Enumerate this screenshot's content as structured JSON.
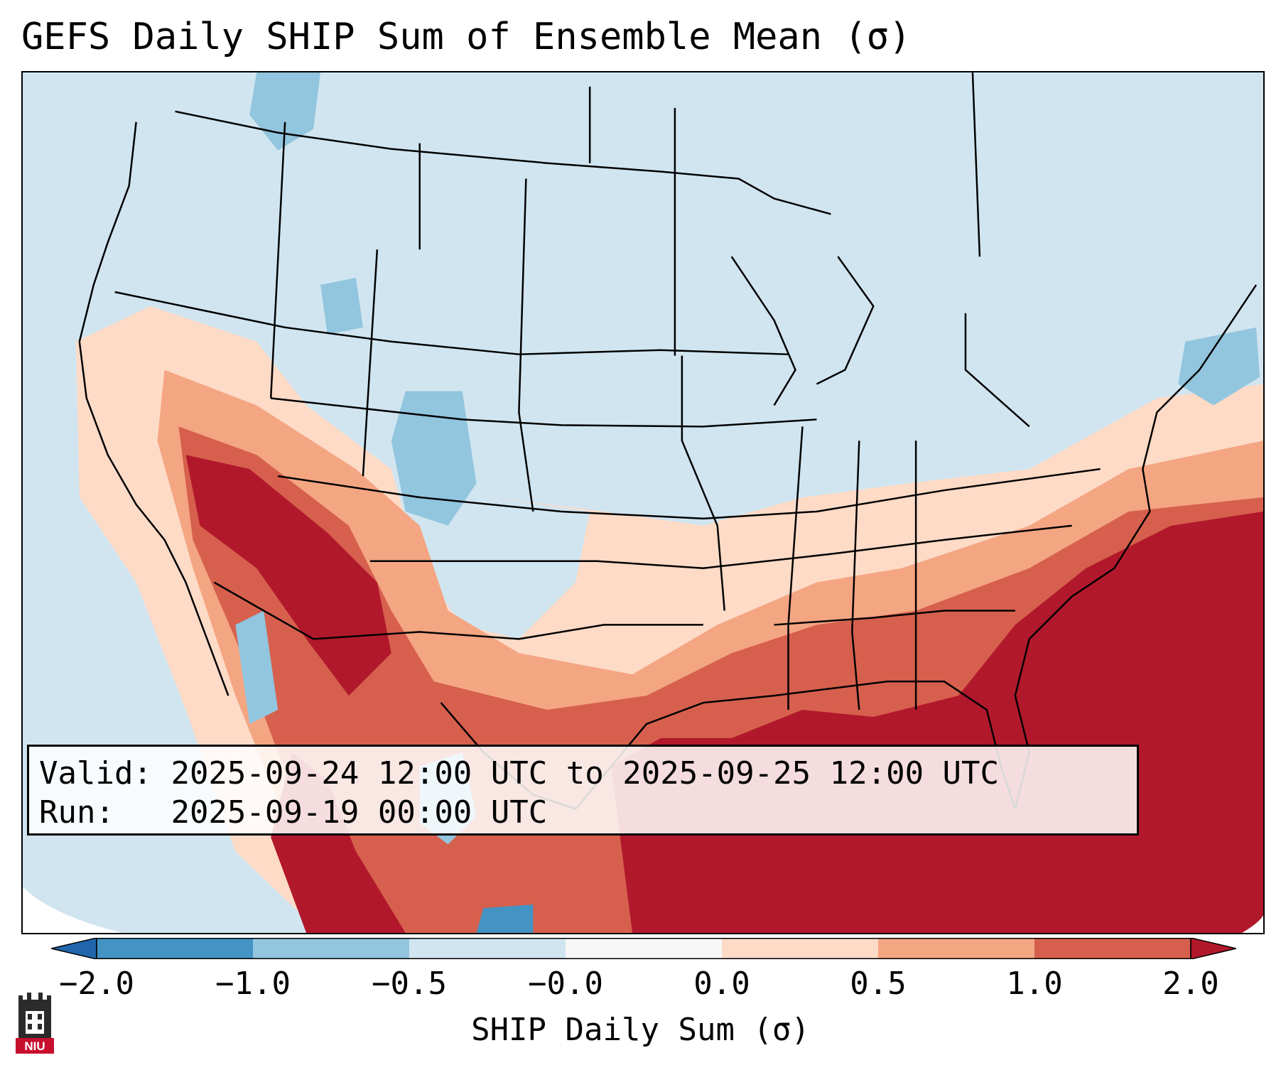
{
  "title": "GEFS Daily SHIP Sum of Ensemble Mean (σ)",
  "info": {
    "valid_label": "Valid:",
    "valid_value": "2025-09-24 12:00 UTC to 2025-09-25 12:00 UTC",
    "run_label": "Run:",
    "run_value": "2025-09-19 00:00 UTC"
  },
  "colorbar": {
    "label": "SHIP Daily Sum (σ)",
    "ticks": [
      "−2.0",
      "−1.0",
      "−0.5",
      "−0.0",
      "0.0",
      "0.5",
      "1.0",
      "2.0"
    ],
    "colors": [
      "#2166ac",
      "#4393c3",
      "#92c5de",
      "#d1e5f0",
      "#f7f7f7",
      "#fddbc7",
      "#f4a582",
      "#d6604d",
      "#b2182b"
    ],
    "extend": "both"
  },
  "logo": {
    "text": "NIU"
  },
  "map": {
    "region": "Contiguous United States, Mexico, Gulf of Mexico",
    "background_color": "#d1e5f0"
  }
}
